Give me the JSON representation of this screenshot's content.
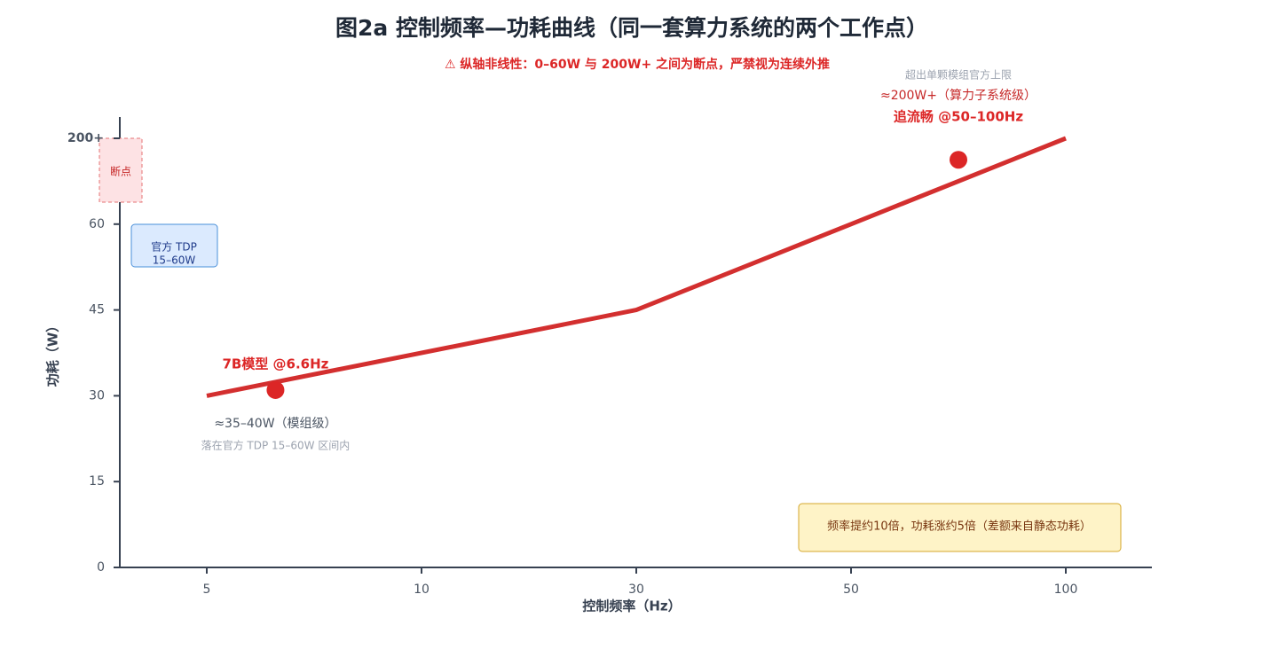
{
  "chart_data": {
    "type": "line",
    "title": "图2a 控制频率—功耗曲线（同一套算力系统的两个工作点）",
    "subtitle": "⚠ 纵轴非线性：0–60W 与 200W+ 之间为断点，严禁视为连续外推",
    "x_label": "控制频率（Hz）",
    "y_label": "功耗（W）",
    "xlim": [
      5,
      100
    ],
    "xticks": [
      5,
      10,
      30,
      50,
      100
    ],
    "ylim": [
      0,
      200
    ],
    "yticks": [
      0,
      15,
      30,
      45,
      60,
      {
        "value": 200,
        "label": "200+"
      }
    ],
    "series": [
      {
        "color": "#d32f2f",
        "x": [
          5,
          30,
          50,
          100
        ],
        "values": [
          30,
          45,
          60,
          200
        ]
      }
    ],
    "points": [
      {
        "x": 6.6,
        "y": 31,
        "color": "#dc2626",
        "label": "7B模型 @6.6Hz",
        "notes": [
          "≈35–40W（模组级）",
          "落在官方 TDP 15–60W 区间内"
        ]
      },
      {
        "x": 75,
        "y": 165,
        "color": "#dc2626",
        "label": "追流畅 @50–100Hz",
        "notes": [
          "≈200W+（算力子系统级）",
          "超出单颗模组官方上限"
        ]
      }
    ],
    "break_box": "断点",
    "tdp_box": [
      "官方 TDP",
      "15–60W"
    ],
    "summary_box": "频率提约10倍，功耗涨约5倍（差额来自静态功耗）"
  }
}
